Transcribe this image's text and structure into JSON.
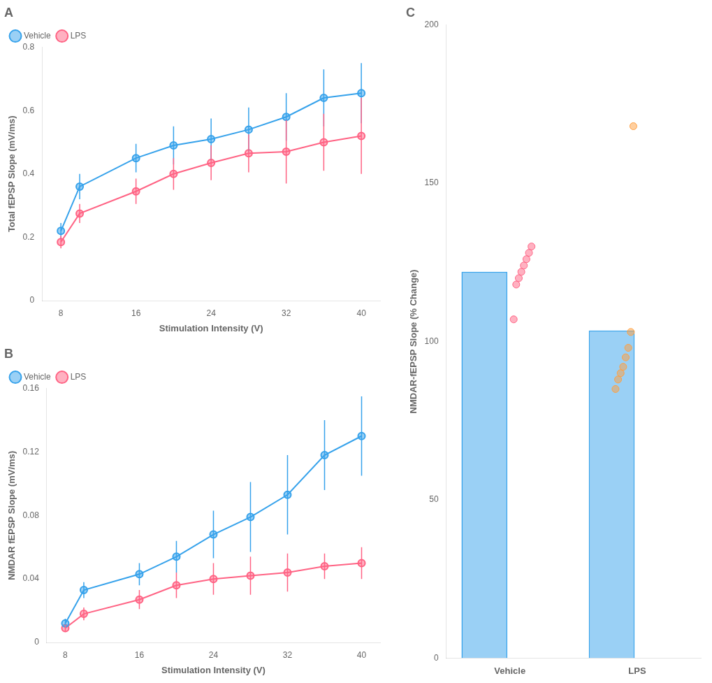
{
  "chart_data": [
    {
      "type": "line",
      "title": "A",
      "x": [
        8,
        10,
        16,
        20,
        24,
        28,
        32,
        36,
        40
      ],
      "series": [
        {
          "name": "Vehicle",
          "values": [
            0.22,
            0.36,
            0.45,
            0.49,
            0.51,
            0.54,
            0.58,
            0.64,
            0.655
          ],
          "errors": [
            0.025,
            0.04,
            0.045,
            0.06,
            0.065,
            0.07,
            0.075,
            0.09,
            0.095
          ],
          "marker": "circle"
        },
        {
          "name": "LPS",
          "values": [
            0.185,
            0.275,
            0.345,
            0.4,
            0.435,
            0.465,
            0.47,
            0.5,
            0.52
          ],
          "errors": [
            0.02,
            0.03,
            0.04,
            0.05,
            0.055,
            0.06,
            0.1,
            0.09,
            0.12
          ],
          "marker": "circle"
        }
      ],
      "xlabel": "Stimulation Intensity (V)",
      "ylabel": "Total fEPSP Slope (mV/ms)",
      "xlim": [
        6,
        42
      ],
      "xticks": [
        8,
        16,
        24,
        32,
        40
      ],
      "ylim": [
        0,
        0.8
      ],
      "yticks": [
        0,
        0.2,
        0.4,
        0.6,
        0.8
      ],
      "grid": false,
      "legend": "upper left"
    },
    {
      "type": "line",
      "title": "B",
      "x": [
        8,
        10,
        16,
        20,
        24,
        28,
        32,
        36,
        40
      ],
      "series": [
        {
          "name": "Vehicle",
          "values": [
            0.012,
            0.033,
            0.043,
            0.054,
            0.068,
            0.079,
            0.093,
            0.118,
            0.13
          ],
          "errors": [
            0.003,
            0.005,
            0.007,
            0.01,
            0.015,
            0.022,
            0.025,
            0.022,
            0.025
          ],
          "marker": "circle"
        },
        {
          "name": "LPS",
          "values": [
            0.009,
            0.018,
            0.027,
            0.036,
            0.04,
            0.042,
            0.044,
            0.048,
            0.05
          ],
          "errors": [
            0.002,
            0.004,
            0.006,
            0.008,
            0.01,
            0.012,
            0.012,
            0.008,
            0.01
          ],
          "marker": "circle"
        }
      ],
      "xlabel": "Stimulation Intensity (V)",
      "ylabel": "NMDAR fEPSP Slope (mV/ms)",
      "xlim": [
        6,
        42
      ],
      "xticks": [
        8,
        16,
        24,
        32,
        40
      ],
      "ylim": [
        0,
        0.16
      ],
      "yticks": [
        0,
        0.04,
        0.08,
        0.12,
        0.16
      ],
      "grid": false,
      "legend": "upper left"
    },
    {
      "type": "bar",
      "title": "C",
      "categories": [
        "Vehicle",
        "LPS"
      ],
      "values": [
        122.0,
        103.5
      ],
      "points": [
        [
          107,
          118,
          120,
          122,
          124,
          126,
          128,
          130
        ],
        [
          85,
          88,
          90,
          92,
          95,
          98,
          103,
          168
        ]
      ],
      "ylabel": "NMDAR-fEPSP Slope (% Change)",
      "ylim": [
        0,
        200
      ],
      "yticks": [
        0,
        50,
        100,
        150,
        200
      ],
      "grid": false
    }
  ]
}
